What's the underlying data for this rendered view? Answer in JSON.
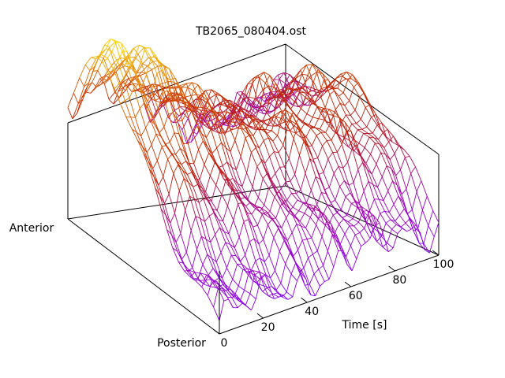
{
  "chart_data": {
    "type": "surface-3d-wireframe",
    "title": "TB2065_080404.ost",
    "x_axis": {
      "label": "Time [s]",
      "range": [
        0,
        100
      ],
      "ticks": [
        {
          "value": 0,
          "label": "0"
        },
        {
          "value": 20,
          "label": "20"
        },
        {
          "value": 40,
          "label": "40"
        },
        {
          "value": 60,
          "label": "60"
        },
        {
          "value": 80,
          "label": "80"
        },
        {
          "value": 100,
          "label": "100"
        }
      ]
    },
    "y_axis": {
      "labels": {
        "front": "Posterior",
        "back": "Anterior"
      }
    },
    "grid": false,
    "colormap": [
      "#7f00ff",
      "#a000c0",
      "#c02000",
      "#e06000",
      "#ffe000"
    ],
    "colormap_note_min_color": "#7f00ff",
    "colormap_note_max_color": "#ffe000"
  }
}
